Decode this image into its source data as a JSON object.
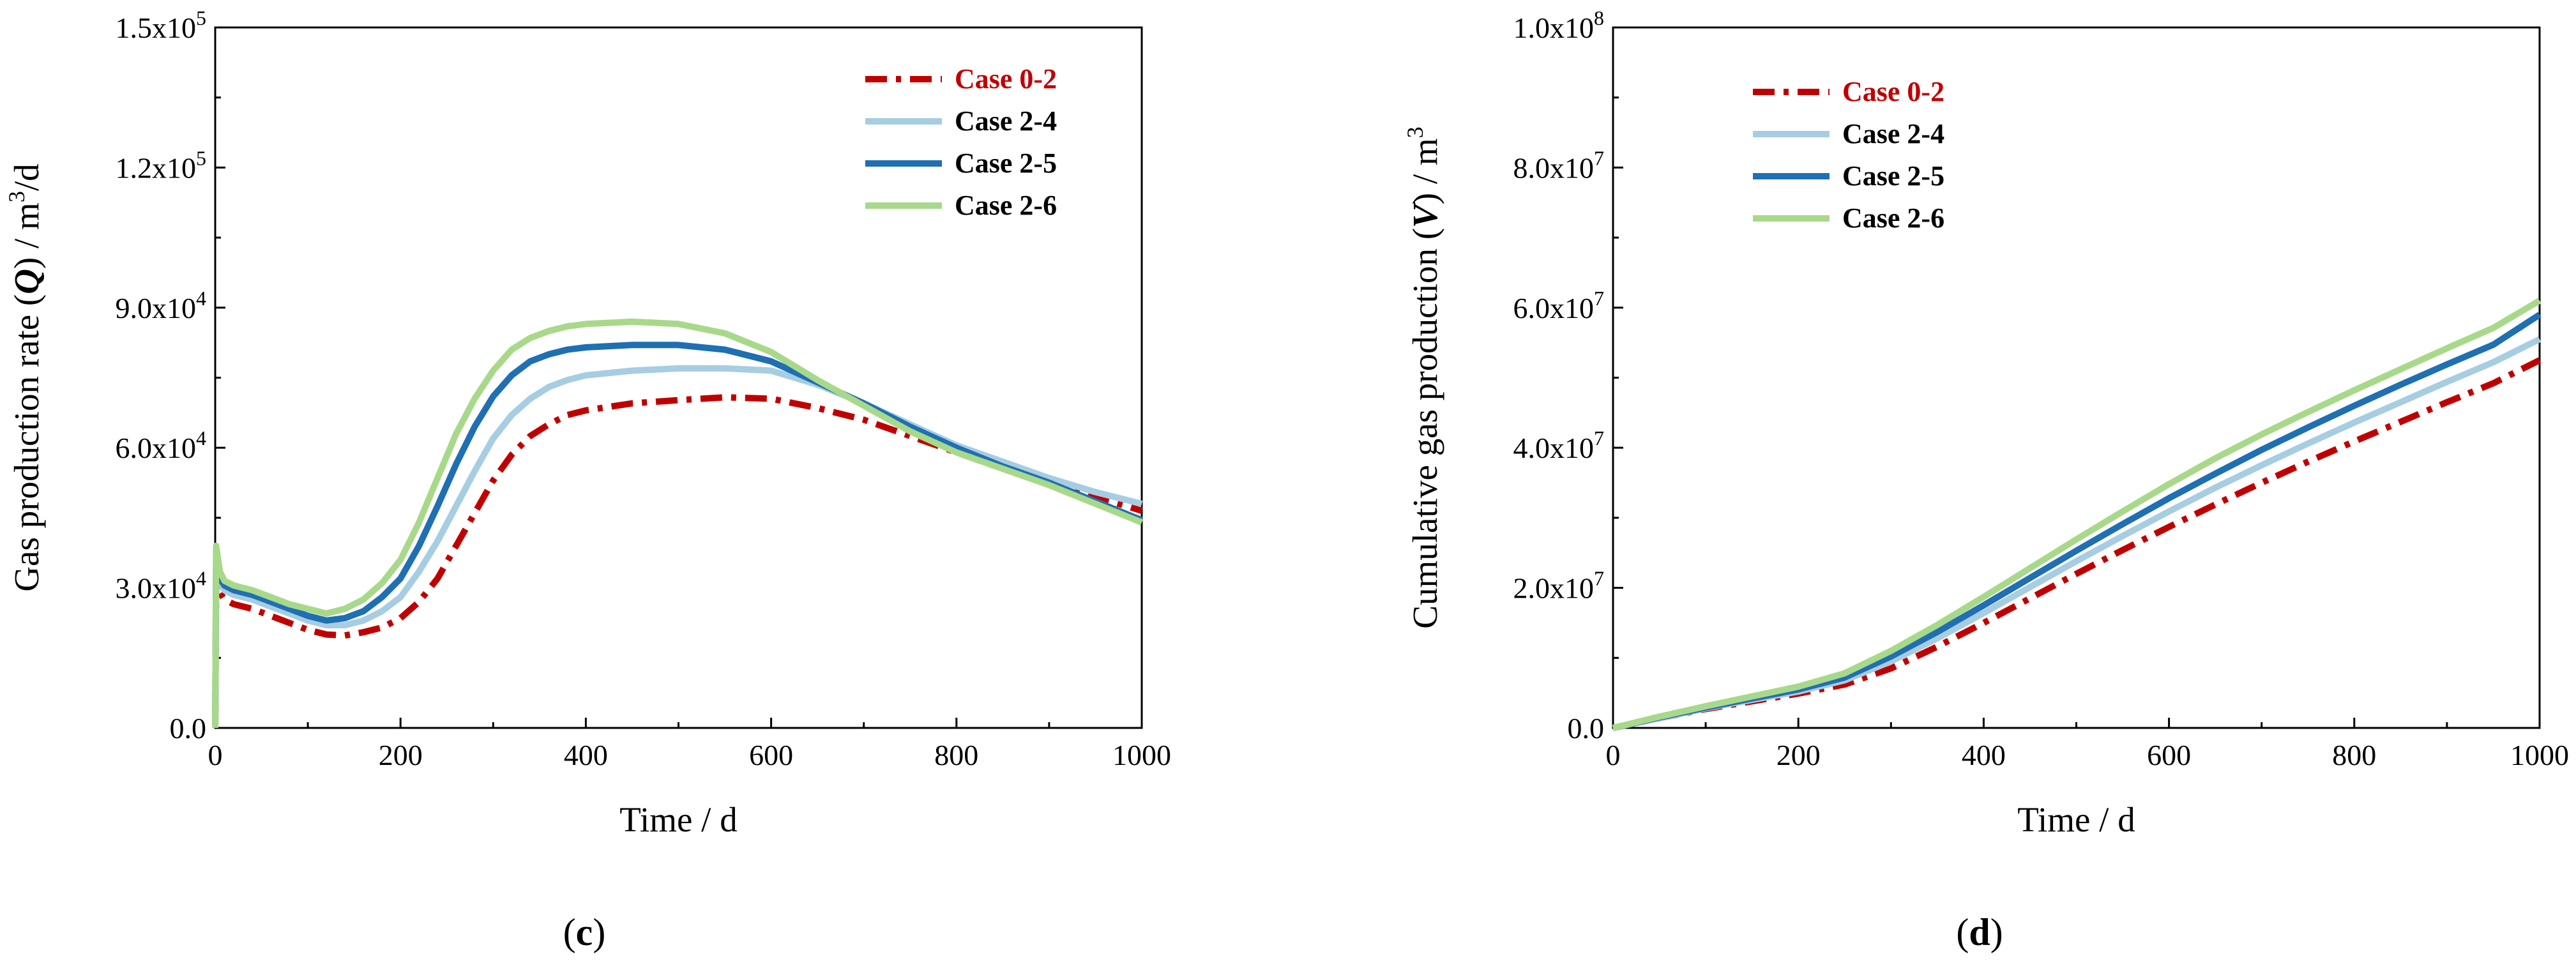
{
  "chart_data": [
    {
      "panel": "(c)",
      "panel_letter": "c",
      "type": "line",
      "xlabel": "Time / d",
      "ylabel_parts": [
        "Gas production rate (",
        "Q",
        ") / m",
        "3",
        "/d"
      ],
      "xlim": [
        0,
        1000
      ],
      "ylim": [
        0,
        150000
      ],
      "xticks": [
        0,
        200,
        400,
        600,
        800,
        1000
      ],
      "xtick_labels": [
        "0",
        "200",
        "400",
        "600",
        "800",
        "1000"
      ],
      "yticks": [
        0,
        30000,
        60000,
        90000,
        120000,
        150000
      ],
      "ytick_labels": [
        {
          "mantissa": "0.0",
          "exp": ""
        },
        {
          "mantissa": "3.0x10",
          "exp": "4"
        },
        {
          "mantissa": "6.0x10",
          "exp": "4"
        },
        {
          "mantissa": "9.0x10",
          "exp": "4"
        },
        {
          "mantissa": "1.2x10",
          "exp": "5"
        },
        {
          "mantissa": "1.5x10",
          "exp": "5"
        }
      ],
      "legend_position": "top-right",
      "x": [
        0,
        1,
        5,
        10,
        20,
        40,
        60,
        80,
        100,
        120,
        140,
        160,
        180,
        200,
        220,
        240,
        260,
        280,
        300,
        320,
        340,
        360,
        380,
        400,
        450,
        500,
        550,
        600,
        650,
        700,
        750,
        800,
        850,
        900,
        950,
        1000
      ],
      "series": [
        {
          "name": "Case 0-2",
          "color": "#c00000",
          "style": "dashdot",
          "values": [
            0,
            32000,
            29000,
            27500,
            26500,
            25500,
            24000,
            22500,
            21000,
            20000,
            19800,
            20500,
            21500,
            23500,
            27000,
            32000,
            39000,
            46000,
            53000,
            58500,
            62500,
            65000,
            67000,
            68000,
            69500,
            70200,
            70800,
            70500,
            68500,
            66000,
            62500,
            59000,
            55500,
            52500,
            49500,
            46500
          ]
        },
        {
          "name": "Case 2-4",
          "color": "#a6cde2",
          "style": "solid",
          "values": [
            0,
            35000,
            31000,
            29500,
            28500,
            27500,
            26000,
            24500,
            23000,
            22000,
            22000,
            23000,
            25000,
            28000,
            33500,
            40000,
            47500,
            55000,
            62000,
            67000,
            70500,
            73000,
            74500,
            75500,
            76500,
            77000,
            77000,
            76500,
            73500,
            69500,
            65000,
            60500,
            57000,
            53500,
            50500,
            48000
          ]
        },
        {
          "name": "Case 2-5",
          "color": "#1f6fb3",
          "style": "solid",
          "values": [
            0,
            37000,
            32000,
            30500,
            29500,
            28500,
            27000,
            25500,
            24000,
            23000,
            23500,
            25000,
            28000,
            32000,
            39000,
            47500,
            56500,
            64500,
            71000,
            75500,
            78500,
            80000,
            81000,
            81500,
            82000,
            82000,
            81000,
            78500,
            74000,
            69500,
            64500,
            60000,
            56000,
            52500,
            48500,
            44500
          ]
        },
        {
          "name": "Case 2-6",
          "color": "#a8d98a",
          "style": "solid",
          "values": [
            0,
            39000,
            33500,
            31500,
            30500,
            29500,
            28000,
            26500,
            25500,
            24500,
            25500,
            27500,
            31000,
            36000,
            44000,
            53500,
            63000,
            70500,
            76500,
            81000,
            83500,
            85000,
            86000,
            86500,
            87000,
            86500,
            84500,
            80500,
            74500,
            69000,
            63500,
            59000,
            55500,
            52000,
            48000,
            44000
          ]
        }
      ]
    },
    {
      "panel": "(d)",
      "panel_letter": "d",
      "type": "line",
      "xlabel": "Time / d",
      "ylabel_parts": [
        "Cumulative gas production (",
        "V",
        ") / m",
        "3",
        ""
      ],
      "xlim": [
        0,
        1000
      ],
      "ylim": [
        0,
        100000000
      ],
      "xticks": [
        0,
        200,
        400,
        600,
        800,
        1000
      ],
      "xtick_labels": [
        "0",
        "200",
        "400",
        "600",
        "800",
        "1000"
      ],
      "yticks": [
        0,
        20000000,
        40000000,
        60000000,
        80000000,
        100000000
      ],
      "ytick_labels": [
        {
          "mantissa": "0.0",
          "exp": ""
        },
        {
          "mantissa": "2.0x10",
          "exp": "7"
        },
        {
          "mantissa": "4.0x10",
          "exp": "7"
        },
        {
          "mantissa": "6.0x10",
          "exp": "7"
        },
        {
          "mantissa": "8.0x10",
          "exp": "7"
        },
        {
          "mantissa": "1.0x10",
          "exp": "8"
        }
      ],
      "legend_position": "top-left",
      "x": [
        0,
        50,
        100,
        150,
        200,
        250,
        300,
        350,
        400,
        450,
        500,
        550,
        600,
        650,
        700,
        750,
        800,
        850,
        900,
        950,
        1000
      ],
      "series": [
        {
          "name": "Case 0-2",
          "color": "#c00000",
          "style": "dashdot",
          "values": [
            0,
            1400000,
            2700000,
            3800000,
            4900000,
            6200000,
            8500000,
            11600000,
            15000000,
            18500000,
            22000000,
            25400000,
            28700000,
            31900000,
            35000000,
            38000000,
            40900000,
            43700000,
            46500000,
            49200000,
            52500000
          ]
        },
        {
          "name": "Case 2-4",
          "color": "#a6cde2",
          "style": "solid",
          "values": [
            0,
            1400000,
            2800000,
            4000000,
            5200000,
            6800000,
            9500000,
            12800000,
            16400000,
            20100000,
            23800000,
            27400000,
            30900000,
            34300000,
            37500000,
            40600000,
            43600000,
            46500000,
            49400000,
            52200000,
            55500000
          ]
        },
        {
          "name": "Case 2-5",
          "color": "#1f6fb3",
          "style": "solid",
          "values": [
            0,
            1500000,
            2900000,
            4200000,
            5500000,
            7200000,
            10200000,
            13700000,
            17500000,
            21400000,
            25300000,
            29100000,
            32800000,
            36300000,
            39700000,
            42900000,
            46000000,
            49000000,
            51900000,
            54700000,
            59000000
          ]
        },
        {
          "name": "Case 2-6",
          "color": "#a8d98a",
          "style": "solid",
          "values": [
            0,
            1600000,
            3100000,
            4500000,
            5900000,
            7800000,
            11000000,
            14700000,
            18700000,
            22800000,
            26900000,
            30900000,
            34800000,
            38500000,
            41900000,
            45100000,
            48200000,
            51200000,
            54200000,
            57100000,
            61000000
          ]
        }
      ]
    }
  ]
}
